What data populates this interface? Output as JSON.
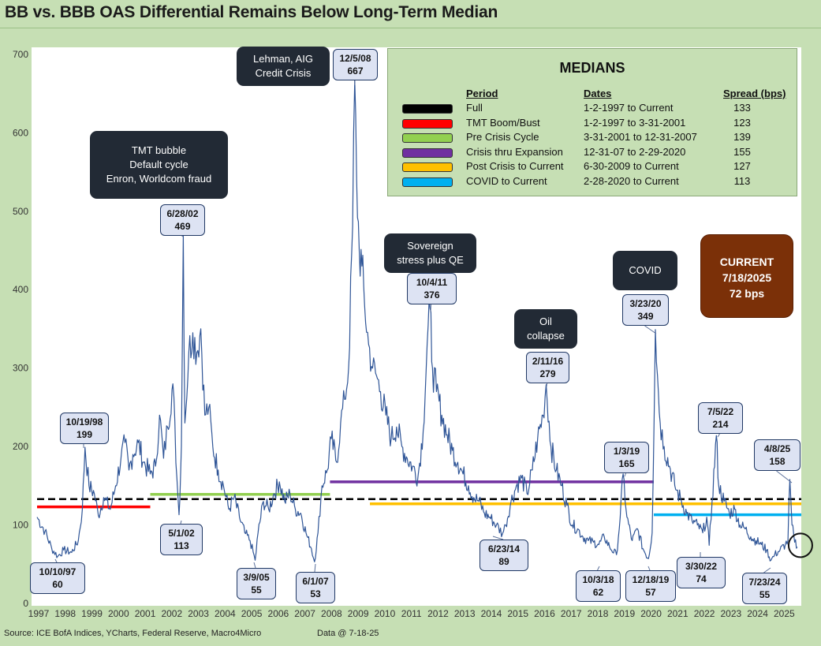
{
  "title": "BB vs. BBB OAS Differential Remains Below Long-Term Median",
  "footer": {
    "source": "Source: ICE BofA Indices, YCharts, Federal Reserve, Macro4Micro",
    "data_date": "Data @ 7-18-25"
  },
  "medians_box": {
    "title": "MEDIANS",
    "headers": {
      "period": "Period",
      "dates": "Dates",
      "spread": "Spread (bps)"
    },
    "rows": [
      {
        "period": "Full",
        "dates": "1-2-1997 to Current",
        "spread": "133",
        "color": "#000000"
      },
      {
        "period": "TMT Boom/Bust",
        "dates": "1-2-1997 to 3-31-2001",
        "spread": "123",
        "color": "#ff0000"
      },
      {
        "period": "Pre Crisis Cycle",
        "dates": "3-31-2001 to 12-31-2007",
        "spread": "139",
        "color": "#92d050"
      },
      {
        "period": "Crisis thru Expansion",
        "dates": "12-31-07 to 2-29-2020",
        "spread": "155",
        "color": "#7030a0"
      },
      {
        "period": "Post Crisis to Current",
        "dates": "6-30-2009 to Current",
        "spread": "127",
        "color": "#ffc000"
      },
      {
        "period": "COVID to Current",
        "dates": "2-28-2020 to Current",
        "spread": "113",
        "color": "#00b0f0"
      }
    ]
  },
  "current_box": {
    "label": "CURRENT",
    "date": "7/18/2025",
    "value": "72 bps"
  },
  "event_boxes": [
    {
      "id": "tmt",
      "lines": [
        "TMT bubble",
        "Default cycle",
        "Enron, Worldcom fraud"
      ]
    },
    {
      "id": "lehman",
      "lines": [
        "Lehman, AIG",
        "Credit Crisis"
      ]
    },
    {
      "id": "sovereign",
      "lines": [
        "Sovereign",
        "stress plus QE"
      ]
    },
    {
      "id": "oil",
      "lines": [
        "Oil",
        "collapse"
      ]
    },
    {
      "id": "covid",
      "lines": [
        "COVID"
      ]
    }
  ],
  "callouts": [
    {
      "date": "10/19/98",
      "value": "199"
    },
    {
      "date": "10/10/97",
      "value": "60"
    },
    {
      "date": "6/28/02",
      "value": "469"
    },
    {
      "date": "5/1/02",
      "value": "113"
    },
    {
      "date": "3/9/05",
      "value": "55"
    },
    {
      "date": "6/1/07",
      "value": "53"
    },
    {
      "date": "12/5/08",
      "value": "667"
    },
    {
      "date": "10/4/11",
      "value": "376"
    },
    {
      "date": "6/23/14",
      "value": "89"
    },
    {
      "date": "2/11/16",
      "value": "279"
    },
    {
      "date": "1/3/19",
      "value": "165"
    },
    {
      "date": "10/3/18",
      "value": "62"
    },
    {
      "date": "12/18/19",
      "value": "57"
    },
    {
      "date": "3/23/20",
      "value": "349"
    },
    {
      "date": "3/30/22",
      "value": "74"
    },
    {
      "date": "7/5/22",
      "value": "214"
    },
    {
      "date": "7/23/24",
      "value": "55"
    },
    {
      "date": "4/8/25",
      "value": "158"
    }
  ],
  "chart_data": {
    "type": "line",
    "title": "BB vs. BBB OAS Differential Remains Below Long-Term Median",
    "xlim": [
      1997.0,
      2025.7
    ],
    "ylim": [
      0,
      720
    ],
    "y_ticks": [
      0,
      100,
      200,
      300,
      400,
      500,
      600,
      700
    ],
    "x_ticks": [
      1997,
      1998,
      1999,
      2000,
      2001,
      2002,
      2003,
      2004,
      2005,
      2006,
      2007,
      2008,
      2009,
      2010,
      2011,
      2012,
      2013,
      2014,
      2015,
      2016,
      2017,
      2018,
      2019,
      2020,
      2021,
      2022,
      2023,
      2024,
      2025
    ],
    "grid": false,
    "series": [
      {
        "color": "#2f5597",
        "points": [
          [
            1997.0,
            110
          ],
          [
            1997.3,
            92
          ],
          [
            1997.55,
            70
          ],
          [
            1997.78,
            60
          ],
          [
            1998.0,
            68
          ],
          [
            1998.3,
            65
          ],
          [
            1998.55,
            80
          ],
          [
            1998.7,
            120
          ],
          [
            1998.8,
            199
          ],
          [
            1998.95,
            150
          ],
          [
            1999.15,
            140
          ],
          [
            1999.3,
            112
          ],
          [
            1999.5,
            135
          ],
          [
            1999.75,
            120
          ],
          [
            1999.95,
            150
          ],
          [
            2000.15,
            185
          ],
          [
            2000.3,
            205
          ],
          [
            2000.45,
            170
          ],
          [
            2000.6,
            190
          ],
          [
            2000.8,
            205
          ],
          [
            2001.0,
            180
          ],
          [
            2001.25,
            165
          ],
          [
            2001.45,
            175
          ],
          [
            2001.6,
            240
          ],
          [
            2001.75,
            185
          ],
          [
            2001.9,
            225
          ],
          [
            2002.1,
            280
          ],
          [
            2002.25,
            160
          ],
          [
            2002.33,
            113
          ],
          [
            2002.42,
            200
          ],
          [
            2002.49,
            469
          ],
          [
            2002.55,
            230
          ],
          [
            2002.7,
            320
          ],
          [
            2002.85,
            345
          ],
          [
            2003.0,
            320
          ],
          [
            2003.15,
            350
          ],
          [
            2003.3,
            240
          ],
          [
            2003.45,
            250
          ],
          [
            2003.6,
            200
          ],
          [
            2003.8,
            170
          ],
          [
            2004.0,
            150
          ],
          [
            2004.2,
            120
          ],
          [
            2004.4,
            135
          ],
          [
            2004.6,
            110
          ],
          [
            2004.8,
            90
          ],
          [
            2005.0,
            80
          ],
          [
            2005.19,
            55
          ],
          [
            2005.3,
            90
          ],
          [
            2005.5,
            130
          ],
          [
            2005.7,
            120
          ],
          [
            2005.9,
            140
          ],
          [
            2006.1,
            155
          ],
          [
            2006.3,
            130
          ],
          [
            2006.5,
            140
          ],
          [
            2006.7,
            120
          ],
          [
            2006.9,
            115
          ],
          [
            2007.1,
            90
          ],
          [
            2007.3,
            70
          ],
          [
            2007.42,
            53
          ],
          [
            2007.55,
            90
          ],
          [
            2007.7,
            150
          ],
          [
            2007.9,
            170
          ],
          [
            2008.05,
            210
          ],
          [
            2008.25,
            180
          ],
          [
            2008.4,
            230
          ],
          [
            2008.55,
            260
          ],
          [
            2008.7,
            300
          ],
          [
            2008.85,
            480
          ],
          [
            2008.93,
            667
          ],
          [
            2009.0,
            540
          ],
          [
            2009.1,
            450
          ],
          [
            2009.2,
            430
          ],
          [
            2009.3,
            380
          ],
          [
            2009.45,
            330
          ],
          [
            2009.6,
            300
          ],
          [
            2009.75,
            290
          ],
          [
            2009.9,
            270
          ],
          [
            2010.1,
            240
          ],
          [
            2010.3,
            210
          ],
          [
            2010.5,
            225
          ],
          [
            2010.7,
            200
          ],
          [
            2010.9,
            185
          ],
          [
            2011.1,
            175
          ],
          [
            2011.3,
            160
          ],
          [
            2011.5,
            220
          ],
          [
            2011.65,
            330
          ],
          [
            2011.76,
            376
          ],
          [
            2011.85,
            300
          ],
          [
            2012.0,
            270
          ],
          [
            2012.2,
            240
          ],
          [
            2012.4,
            215
          ],
          [
            2012.6,
            195
          ],
          [
            2012.8,
            180
          ],
          [
            2013.0,
            165
          ],
          [
            2013.2,
            150
          ],
          [
            2013.4,
            135
          ],
          [
            2013.6,
            130
          ],
          [
            2013.8,
            115
          ],
          [
            2014.0,
            110
          ],
          [
            2014.25,
            100
          ],
          [
            2014.48,
            89
          ],
          [
            2014.6,
            100
          ],
          [
            2014.8,
            130
          ],
          [
            2015.0,
            150
          ],
          [
            2015.2,
            160
          ],
          [
            2015.4,
            140
          ],
          [
            2015.6,
            170
          ],
          [
            2015.8,
            210
          ],
          [
            2016.0,
            240
          ],
          [
            2016.12,
            279
          ],
          [
            2016.3,
            200
          ],
          [
            2016.5,
            170
          ],
          [
            2016.7,
            150
          ],
          [
            2016.9,
            125
          ],
          [
            2017.1,
            100
          ],
          [
            2017.3,
            95
          ],
          [
            2017.5,
            85
          ],
          [
            2017.7,
            80
          ],
          [
            2017.9,
            78
          ],
          [
            2018.1,
            75
          ],
          [
            2018.3,
            85
          ],
          [
            2018.5,
            72
          ],
          [
            2018.76,
            62
          ],
          [
            2018.9,
            110
          ],
          [
            2019.01,
            165
          ],
          [
            2019.15,
            110
          ],
          [
            2019.35,
            80
          ],
          [
            2019.55,
            95
          ],
          [
            2019.75,
            70
          ],
          [
            2019.96,
            57
          ],
          [
            2020.1,
            90
          ],
          [
            2020.22,
            349
          ],
          [
            2020.3,
            290
          ],
          [
            2020.4,
            230
          ],
          [
            2020.55,
            200
          ],
          [
            2020.75,
            175
          ],
          [
            2020.95,
            150
          ],
          [
            2021.2,
            130
          ],
          [
            2021.4,
            115
          ],
          [
            2021.6,
            105
          ],
          [
            2021.8,
            100
          ],
          [
            2022.0,
            90
          ],
          [
            2022.15,
            110
          ],
          [
            2022.24,
            74
          ],
          [
            2022.35,
            130
          ],
          [
            2022.51,
            214
          ],
          [
            2022.6,
            150
          ],
          [
            2022.8,
            130
          ],
          [
            2023.0,
            115
          ],
          [
            2023.2,
            120
          ],
          [
            2023.4,
            100
          ],
          [
            2023.6,
            95
          ],
          [
            2023.8,
            85
          ],
          [
            2024.0,
            80
          ],
          [
            2024.2,
            75
          ],
          [
            2024.4,
            68
          ],
          [
            2024.56,
            55
          ],
          [
            2024.7,
            62
          ],
          [
            2024.9,
            68
          ],
          [
            2025.1,
            75
          ],
          [
            2025.2,
            80
          ],
          [
            2025.27,
            158
          ],
          [
            2025.35,
            100
          ],
          [
            2025.45,
            78
          ],
          [
            2025.55,
            72
          ]
        ]
      }
    ],
    "median_lines": [
      {
        "value": 133,
        "from": 1997.0,
        "to": 2025.7,
        "color": "#000000",
        "dashed": true
      },
      {
        "value": 123,
        "from": 1997.0,
        "to": 2001.25,
        "color": "#ff0000"
      },
      {
        "value": 139,
        "from": 2001.25,
        "to": 2008.0,
        "color": "#92d050"
      },
      {
        "value": 155,
        "from": 2008.0,
        "to": 2020.16,
        "color": "#7030a0"
      },
      {
        "value": 127,
        "from": 2009.5,
        "to": 2025.7,
        "color": "#ffc000"
      },
      {
        "value": 113,
        "from": 2020.16,
        "to": 2025.7,
        "color": "#00b0f0"
      }
    ],
    "current_marker": {
      "x": 2025.55,
      "y": 72
    }
  }
}
